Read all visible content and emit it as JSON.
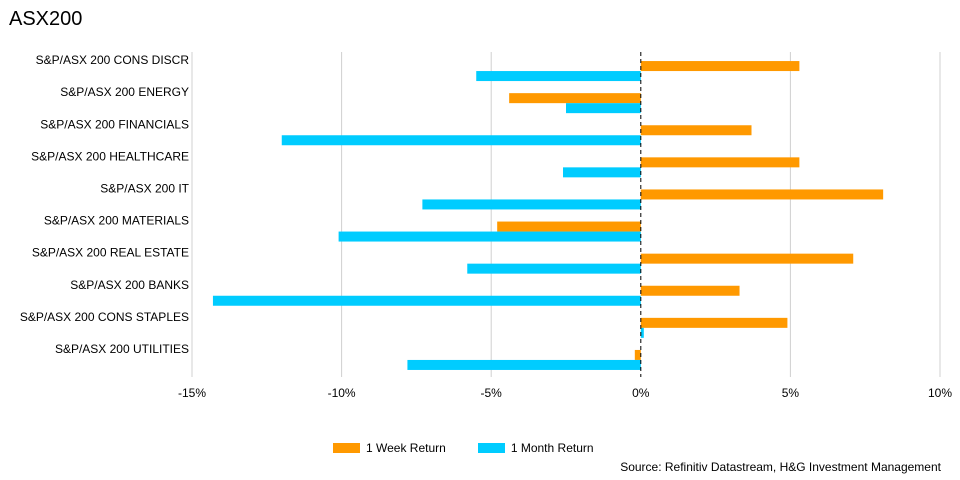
{
  "chart_data": {
    "type": "bar",
    "orientation": "horizontal",
    "title": "ASX200",
    "categories": [
      "S&P/ASX 200 CONS DISCR",
      "S&P/ASX 200 ENERGY",
      "S&P/ASX 200 FINANCIALS",
      "S&P/ASX 200 HEALTHCARE",
      "S&P/ASX 200 IT",
      "S&P/ASX 200 MATERIALS",
      "S&P/ASX 200 REAL ESTATE",
      "S&P/ASX 200 BANKS",
      "S&P/ASX 200 CONS STAPLES",
      "S&P/ASX 200 UTILITIES"
    ],
    "series": [
      {
        "name": "1 Week Return",
        "color": "#FF9900",
        "values": [
          5.3,
          -4.4,
          3.7,
          5.3,
          8.1,
          -4.8,
          7.1,
          3.3,
          4.9,
          -0.2
        ]
      },
      {
        "name": "1 Month Return",
        "color": "#00CCFF",
        "values": [
          -5.5,
          -2.5,
          -12.0,
          -2.6,
          -7.3,
          -10.1,
          -5.8,
          -14.3,
          0.1,
          -7.8
        ]
      }
    ],
    "xlim": [
      -15,
      10
    ],
    "xticks": [
      -15,
      -10,
      -5,
      0,
      5,
      10
    ],
    "xtick_labels": [
      "-15%",
      "-10%",
      "-5%",
      "0%",
      "5%",
      "10%"
    ],
    "grid": "vertical",
    "legend": "bottom",
    "source": "Source: Refinitiv Datastream, H&G Investment Management"
  }
}
